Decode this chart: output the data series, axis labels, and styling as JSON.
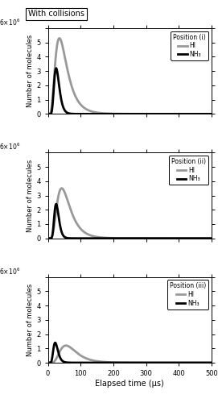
{
  "title": "With collisions",
  "xlabel": "Elapsed time (μs)",
  "ylabel": "Number of molecules",
  "xlim": [
    0,
    500
  ],
  "ylim": [
    0,
    6000000.0
  ],
  "yticks": [
    0,
    1000000.0,
    2000000.0,
    3000000.0,
    4000000.0,
    5000000.0,
    6000000.0
  ],
  "xticks": [
    0,
    100,
    200,
    300,
    400,
    500
  ],
  "panels": [
    {
      "label": "Position (i)",
      "nh3_peak": 25,
      "nh3_sigma": 8,
      "nh3_amp": 3200000,
      "hi_peak": 35,
      "hi_sigma": 18,
      "hi_amp": 5300000
    },
    {
      "label": "Position (ii)",
      "nh3_peak": 25,
      "nh3_sigma": 7,
      "nh3_amp": 2400000,
      "hi_peak": 42,
      "hi_sigma": 20,
      "hi_amp": 3500000
    },
    {
      "label": "Position (iii)",
      "nh3_peak": 22,
      "nh3_sigma": 7,
      "nh3_amp": 1400000,
      "hi_peak": 55,
      "hi_sigma": 25,
      "hi_amp": 1200000
    }
  ],
  "nh3_color": "#000000",
  "hi_color": "#999999",
  "nh3_lw": 2.0,
  "hi_lw": 2.0,
  "background_color": "#ffffff"
}
